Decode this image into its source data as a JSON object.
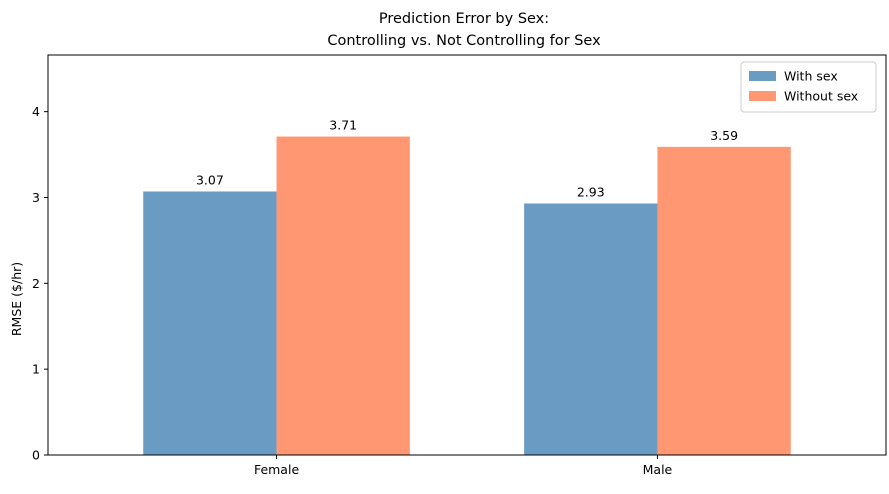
{
  "chart_data": {
    "type": "bar",
    "title_lines": [
      "Prediction Error by Sex:",
      "Controlling vs. Not Controlling for Sex"
    ],
    "xlabel": "",
    "ylabel": "RMSE ($/hr)",
    "categories": [
      "Female",
      "Male"
    ],
    "series": [
      {
        "name": "With sex",
        "values": [
          3.07,
          2.93
        ],
        "labels": [
          "3.07",
          "2.93"
        ],
        "color": "#6a9bc3"
      },
      {
        "name": "Without sex",
        "values": [
          3.71,
          3.59
        ],
        "labels": [
          "3.71",
          "3.59"
        ],
        "color": "#ff9872"
      }
    ],
    "ylim": [
      0,
      4.66
    ],
    "yticks": [
      0,
      1,
      2,
      3,
      4
    ],
    "ytick_labels": [
      "0",
      "1",
      "2",
      "3",
      "4"
    ],
    "grid": false,
    "legend_position": "top-right"
  }
}
